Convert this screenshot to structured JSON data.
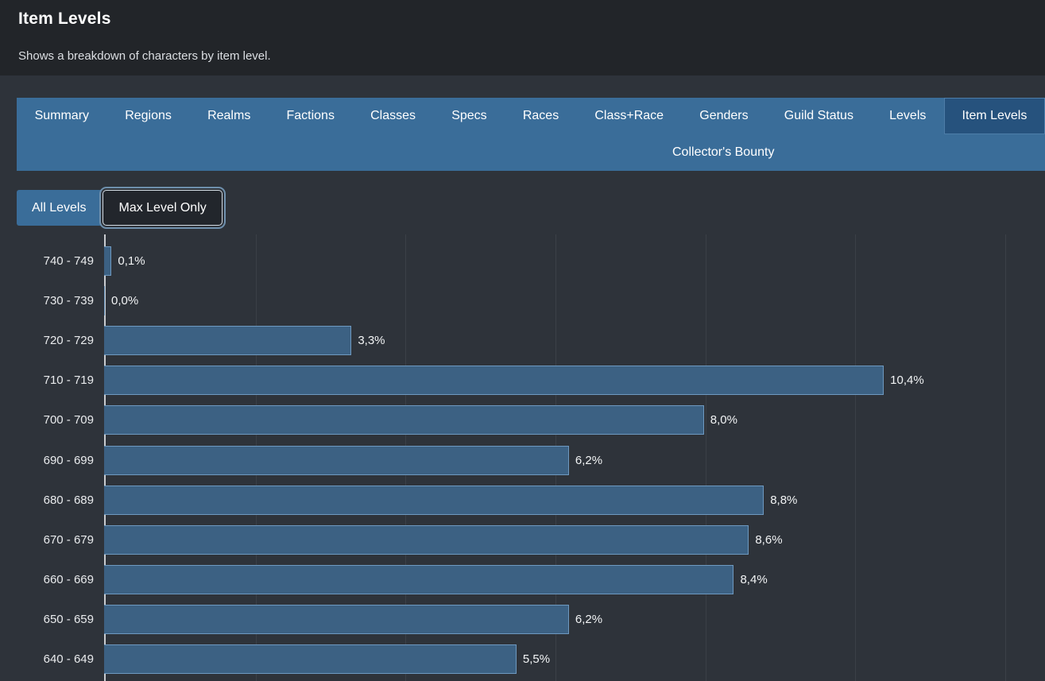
{
  "header": {
    "title": "Item Levels",
    "subtitle": "Shows a breakdown of characters by item level."
  },
  "tabs": [
    {
      "label": "Summary",
      "active": false
    },
    {
      "label": "Regions",
      "active": false
    },
    {
      "label": "Realms",
      "active": false
    },
    {
      "label": "Factions",
      "active": false
    },
    {
      "label": "Classes",
      "active": false
    },
    {
      "label": "Specs",
      "active": false
    },
    {
      "label": "Races",
      "active": false
    },
    {
      "label": "Class+Race",
      "active": false
    },
    {
      "label": "Genders",
      "active": false
    },
    {
      "label": "Guild Status",
      "active": false
    },
    {
      "label": "Levels",
      "active": false
    },
    {
      "label": "Item Levels",
      "active": true
    },
    {
      "label": "Collector's Bounty",
      "active": false,
      "wrapped": true
    }
  ],
  "filters": {
    "options": [
      {
        "label": "All Levels",
        "selected": false
      },
      {
        "label": "Max Level Only",
        "selected": true
      }
    ]
  },
  "colors": {
    "accent_blue": "#3a6d99",
    "active_tab_blue": "#26527d",
    "bar_fill": "#3c6183",
    "bar_border": "#6e99c0",
    "page_bg": "#2e333a",
    "header_bg": "#222529",
    "gridline": "#3b4047",
    "axis_line": "#c9ccd0"
  },
  "chart_data": {
    "type": "bar",
    "orientation": "horizontal",
    "title": "Item Levels",
    "categories": [
      "740 - 749",
      "730 - 739",
      "720 - 729",
      "710 - 719",
      "700 - 709",
      "690 - 699",
      "680 - 689",
      "670 - 679",
      "660 - 669",
      "650 - 659",
      "640 - 649"
    ],
    "values": [
      0.1,
      0.0,
      3.3,
      10.4,
      8.0,
      6.2,
      8.8,
      8.6,
      8.4,
      6.2,
      5.5
    ],
    "value_labels": [
      "0,1%",
      "0,0%",
      "3,3%",
      "10,4%",
      "8,0%",
      "6,2%",
      "8,8%",
      "8,6%",
      "8,4%",
      "6,2%",
      "5,5%"
    ],
    "unit": "%",
    "xlim": [
      0,
      12.55
    ],
    "gridline_interval_percent": 2,
    "grid": "on",
    "legend": "none"
  }
}
